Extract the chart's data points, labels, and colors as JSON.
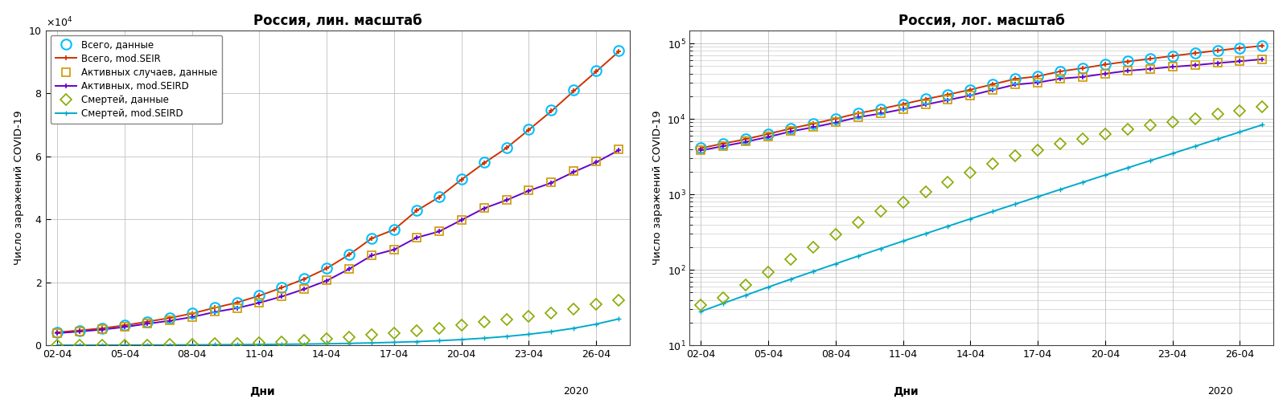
{
  "title_left": "Россия, лин. масштаб",
  "title_right": "Россия, лог. масштаб",
  "ylabel": "Число заражений COVID-19",
  "xlabel": "Дни",
  "xtick_labels": [
    "02-04",
    "05-04",
    "08-04",
    "11-04",
    "14-04",
    "17-04",
    "20-04",
    "23-04",
    "26-04"
  ],
  "xtick_days": [
    0,
    3,
    6,
    9,
    12,
    15,
    18,
    21,
    24
  ],
  "dates_days": [
    0,
    1,
    2,
    3,
    4,
    5,
    6,
    7,
    8,
    9,
    10,
    11,
    12,
    13,
    14,
    15,
    16,
    17,
    18,
    19,
    20,
    21,
    22,
    23,
    24,
    25
  ],
  "total_data": [
    4149,
    4731,
    5389,
    6343,
    7497,
    8672,
    10131,
    11917,
    13584,
    15770,
    18328,
    21102,
    24490,
    28848,
    33996,
    36793,
    42853,
    47121,
    52763,
    57999,
    62773,
    68622,
    74588,
    80949,
    87147,
    93558
  ],
  "total_model": [
    4100,
    4720,
    5380,
    6320,
    7460,
    8640,
    10080,
    11870,
    13540,
    15720,
    18270,
    21030,
    24400,
    28780,
    33900,
    36700,
    42700,
    47000,
    52600,
    57800,
    62600,
    68400,
    74300,
    80700,
    86900,
    93200
  ],
  "active_data": [
    3878,
    4416,
    5006,
    5849,
    6877,
    7831,
    9009,
    10604,
    11843,
    13558,
    15556,
    17895,
    20588,
    24336,
    28594,
    30465,
    34284,
    36208,
    39889,
    43597,
    46165,
    49187,
    51691,
    55193,
    58262,
    62095
  ],
  "active_model": [
    3820,
    4360,
    4960,
    5780,
    6820,
    7760,
    8940,
    10530,
    11770,
    13480,
    15470,
    17810,
    20500,
    24220,
    28480,
    30350,
    34150,
    36100,
    39750,
    43450,
    46050,
    49050,
    51550,
    55000,
    58100,
    61900
  ],
  "death_data": [
    34,
    43,
    63,
    94,
    139,
    200,
    294,
    427,
    601,
    794,
    1073,
    1451,
    1954,
    2537,
    3249,
    3823,
    4693,
    5449,
    6358,
    7318,
    8162,
    9166,
    10131,
    11512,
    12892,
    14369
  ],
  "death_model": [
    28,
    36,
    46,
    59,
    75,
    95,
    120,
    152,
    191,
    240,
    301,
    378,
    474,
    594,
    744,
    929,
    1160,
    1446,
    1802,
    2245,
    2796,
    3481,
    4337,
    5397,
    6717,
    8357
  ],
  "colors": {
    "total_data": "#00BFFF",
    "total_model": "#CC3300",
    "active_data": "#CC9900",
    "active_model": "#6600CC",
    "death_data": "#88AA00",
    "death_model": "#00AACC"
  },
  "ylim_lin": [
    0,
    100000
  ],
  "ylim_log_min": 10,
  "ylim_log_max": 150000,
  "background_color": "#ffffff",
  "grid_color": "#c0c0c0"
}
